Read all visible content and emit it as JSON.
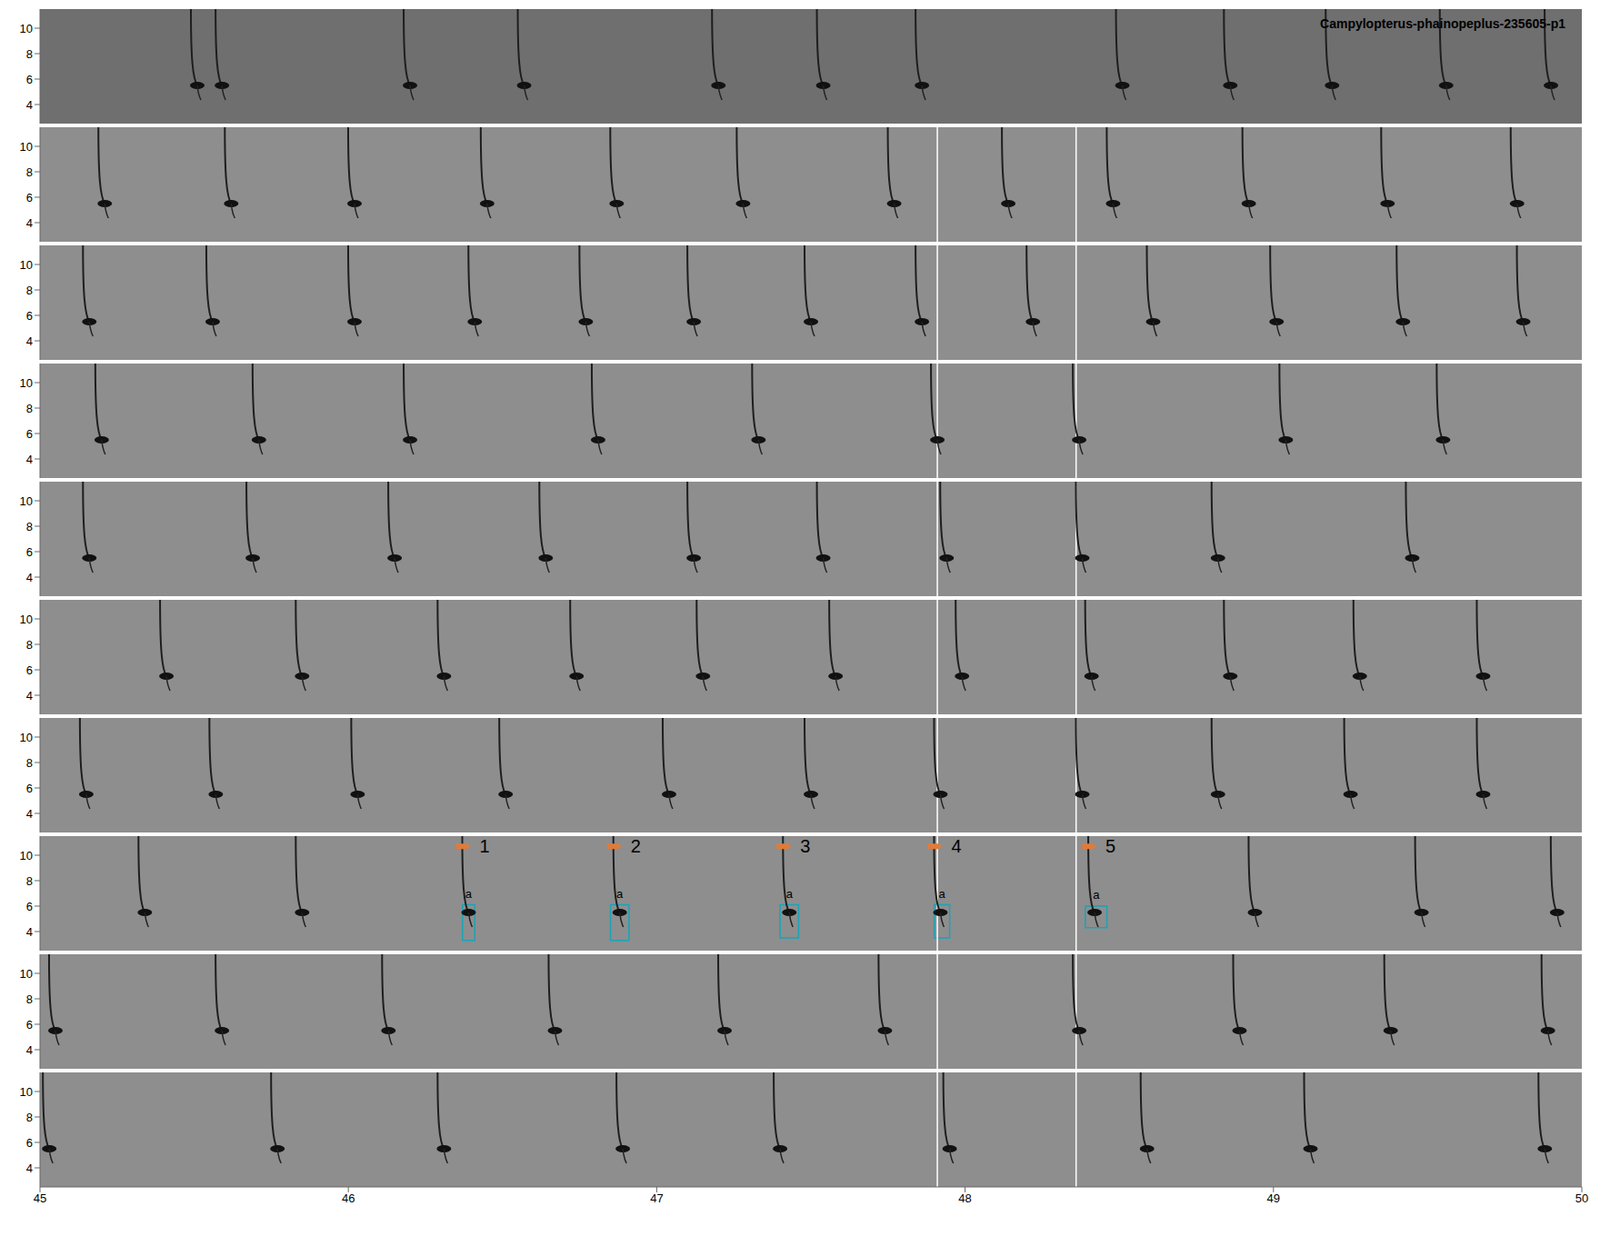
{
  "chart_data": {
    "type": "spectrogram",
    "title": "Campylopterus-phainopeplus-235605-p1",
    "xlim": [
      45,
      50
    ],
    "xticks": [
      45,
      46,
      47,
      48,
      49,
      50
    ],
    "ylim": [
      2.5,
      11.5
    ],
    "yticks": [
      4,
      6,
      8,
      10
    ],
    "note_frequency": 5.5,
    "label_frequency": 10.7,
    "panels": [
      {
        "notes": [
          45.51,
          45.59,
          46.2,
          46.57,
          47.2,
          47.54,
          47.86,
          48.51,
          48.86,
          49.19,
          49.56,
          49.9
        ],
        "cursors": []
      },
      {
        "notes": [
          45.21,
          45.62,
          46.02,
          46.45,
          46.87,
          47.28,
          47.77,
          48.14,
          48.48,
          48.92,
          49.37,
          49.79
        ],
        "cursors": [
          47.91,
          48.36
        ]
      },
      {
        "notes": [
          45.16,
          45.56,
          46.02,
          46.41,
          46.77,
          47.12,
          47.5,
          47.86,
          48.22,
          48.61,
          49.01,
          49.42,
          49.81
        ],
        "cursors": [
          47.91,
          48.36
        ]
      },
      {
        "notes": [
          45.2,
          45.71,
          46.2,
          46.81,
          47.33,
          47.91,
          48.37,
          49.04,
          49.55
        ],
        "cursors": [
          47.91,
          48.36
        ]
      },
      {
        "notes": [
          45.16,
          45.69,
          46.15,
          46.64,
          47.12,
          47.54,
          47.94,
          48.38,
          48.82,
          49.45
        ],
        "cursors": [
          47.91,
          48.36
        ]
      },
      {
        "notes": [
          45.41,
          45.85,
          46.31,
          46.74,
          47.15,
          47.58,
          47.99,
          48.41,
          48.86,
          49.28,
          49.68
        ],
        "cursors": [
          47.91,
          48.36
        ]
      },
      {
        "notes": [
          45.15,
          45.57,
          46.03,
          46.51,
          47.04,
          47.5,
          47.92,
          48.38,
          48.82,
          49.25,
          49.68
        ],
        "cursors": [
          47.91,
          48.36
        ]
      },
      {
        "notes": [
          45.34,
          45.85,
          46.39,
          46.88,
          47.43,
          47.92,
          48.42,
          48.94,
          49.48,
          49.92
        ],
        "cursors": [
          47.91,
          48.36
        ],
        "annotations": [
          {
            "x": 46.39,
            "label": "1",
            "box_label": "a",
            "box": {
              "x": [
                46.37,
                46.41
              ],
              "y": [
                3.3,
                6.1
              ]
            }
          },
          {
            "x": 46.88,
            "label": "2",
            "box_label": "a",
            "box": {
              "x": [
                46.85,
                46.91
              ],
              "y": [
                3.3,
                6.1
              ]
            }
          },
          {
            "x": 47.43,
            "label": "3",
            "box_label": "a",
            "box": {
              "x": [
                47.4,
                47.46
              ],
              "y": [
                3.5,
                6.1
              ]
            }
          },
          {
            "x": 47.92,
            "label": "4",
            "box_label": "a",
            "box": {
              "x": [
                47.9,
                47.95
              ],
              "y": [
                3.5,
                6.1
              ]
            }
          },
          {
            "x": 48.42,
            "label": "5",
            "box_label": "a",
            "box": {
              "x": [
                48.39,
                48.46
              ],
              "y": [
                4.3,
                6.0
              ]
            }
          }
        ]
      },
      {
        "notes": [
          45.05,
          45.59,
          46.13,
          46.67,
          47.22,
          47.74,
          48.37,
          48.89,
          49.38,
          49.89
        ],
        "cursors": [
          47.91,
          48.36
        ]
      },
      {
        "notes": [
          45.03,
          45.77,
          46.31,
          46.89,
          47.4,
          47.95,
          48.59,
          49.12,
          49.88
        ],
        "cursors": [
          47.91,
          48.36
        ]
      }
    ]
  }
}
